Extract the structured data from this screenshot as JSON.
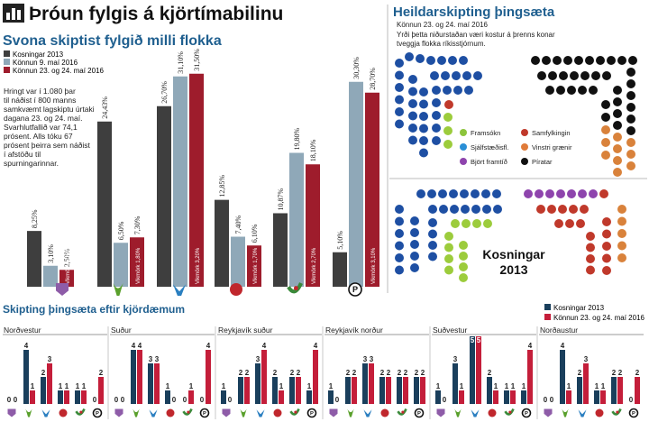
{
  "header": {
    "title": "Þróun fylgis á kjörtímabilinu",
    "icon": "bar-chart-icon"
  },
  "colors": {
    "dark": "#3e3e3e",
    "blue": "#8fa8b8",
    "red": "#9e1c2c",
    "title_blue": "#1f5f8f",
    "navy": "#1a3f5c",
    "pink": "#c41e3a"
  },
  "left": {
    "subtitle": "Svona skiptist fylgið milli flokka",
    "legend": [
      "Kosningar 2013",
      "Könnun 9. maí 2016",
      "Könnun 23. og 24. maí 2016"
    ],
    "note": "Hringt var í 1.080 þar til náðist í 800 manns samkvæmt lagskiptu úrtaki dagana 23. og 24. maí. Svarhlutfallið var 74,1 prósent. Alls tóku 67 prósent þeirra sem náðist í afstöðu til spurningarinnar."
  },
  "chart_data": [
    {
      "type": "bar",
      "title": "Svona skiptist fylgið milli flokka",
      "categories": [
        "Björt framtíð",
        "Framsókn",
        "Sjálfstæðisflokkur",
        "Samfylkingin",
        "Vinstri grænir",
        "Píratar"
      ],
      "series": [
        {
          "name": "Kosningar 2013",
          "values": [
            8.25,
            24.43,
            26.7,
            12.85,
            10.87,
            5.1
          ]
        },
        {
          "name": "Könnun 9. maí 2016",
          "values": [
            3.1,
            6.5,
            31.1,
            7.4,
            19.8,
            30.3
          ]
        },
        {
          "name": "Könnun 23. og 24. maí 2016",
          "values": [
            2.5,
            7.3,
            31.5,
            6.1,
            18.1,
            28.7
          ]
        }
      ],
      "value_labels": [
        [
          "8,25%",
          "3,10%",
          "2,50%"
        ],
        [
          "24,43%",
          "6,50%",
          "7,30%"
        ],
        [
          "26,70%",
          "31,10%",
          "31,50%"
        ],
        [
          "12,85%",
          "7,40%",
          "6,10%"
        ],
        [
          "10,87%",
          "19,80%",
          "18,10%"
        ],
        [
          "5,10%",
          "30,30%",
          "28,70%"
        ]
      ],
      "margin_labels": [
        "Vikmörk 1,10%",
        "Vikmörk 1,80%",
        "Vikmörk 3,20%",
        "Vikmörk 1,70%",
        "Vikmörk 2,70%",
        "Vikmörk 3,10%"
      ],
      "ylim": [
        0,
        33
      ]
    },
    {
      "type": "bar",
      "title": "Skipting þingsæta eftir kjördæmum",
      "legend": [
        "Kosningar 2013",
        "Könnun 23. og 24. maí 2016"
      ],
      "party_order": [
        "BF",
        "Framsókn",
        "Sjálfstæðisflokkur",
        "Samfylkingin",
        "Vinstri grænir",
        "Píratar"
      ],
      "districts": [
        {
          "name": "Norðvestur",
          "seats": [
            [
              0,
              0
            ],
            [
              4,
              1
            ],
            [
              2,
              3
            ],
            [
              1,
              1
            ],
            [
              1,
              1
            ],
            [
              0,
              2
            ]
          ]
        },
        {
          "name": "Suður",
          "seats": [
            [
              0,
              0
            ],
            [
              4,
              4
            ],
            [
              3,
              3
            ],
            [
              1,
              0
            ],
            [
              0,
              1
            ],
            [
              0,
              4
            ]
          ]
        },
        {
          "name": "Reykjavík suður",
          "seats": [
            [
              1,
              0
            ],
            [
              2,
              2
            ],
            [
              3,
              4
            ],
            [
              2,
              1
            ],
            [
              2,
              2
            ],
            [
              1,
              4
            ]
          ]
        },
        {
          "name": "Reykjavík norður",
          "seats": [
            [
              1,
              0
            ],
            [
              2,
              2
            ],
            [
              3,
              3
            ],
            [
              2,
              2
            ],
            [
              2,
              2
            ],
            [
              2,
              2
            ]
          ]
        },
        {
          "name": "Suðvestur",
          "seats": [
            [
              1,
              0
            ],
            [
              3,
              1
            ],
            [
              5,
              5
            ],
            [
              2,
              1
            ],
            [
              1,
              1
            ],
            [
              1,
              4
            ]
          ]
        },
        {
          "name": "Norðaustur",
          "seats": [
            [
              0,
              0
            ],
            [
              4,
              1
            ],
            [
              2,
              3
            ],
            [
              1,
              1
            ],
            [
              2,
              2
            ],
            [
              0,
              2
            ]
          ]
        }
      ],
      "ylim": [
        0,
        5
      ]
    }
  ],
  "right": {
    "title": "Heildarskipting þingsæta",
    "date": "Könnun 23. og 24. maí 2016",
    "note": "Yrði þetta niðurstaðan væri kostur á þrenns konar tveggja flokka ríkisstjórnum.",
    "seat_legend": [
      {
        "label": "Framsókn",
        "color": "#8cc43c"
      },
      {
        "label": "Samfylkingin",
        "color": "#c0392b"
      },
      {
        "label": "Sjálfstæðisfl.",
        "color": "#2a8fd6"
      },
      {
        "label": "Vinstri grænir",
        "color": "#e07b39"
      },
      {
        "label": "Björt framtíð",
        "color": "#8e44ad"
      },
      {
        "label": "Píratar",
        "color": "#111111"
      }
    ],
    "election_label": "Kosningar",
    "election_year": "2013"
  },
  "bottom": {
    "title": "Skipting þingsæta eftir kjördæmum"
  }
}
